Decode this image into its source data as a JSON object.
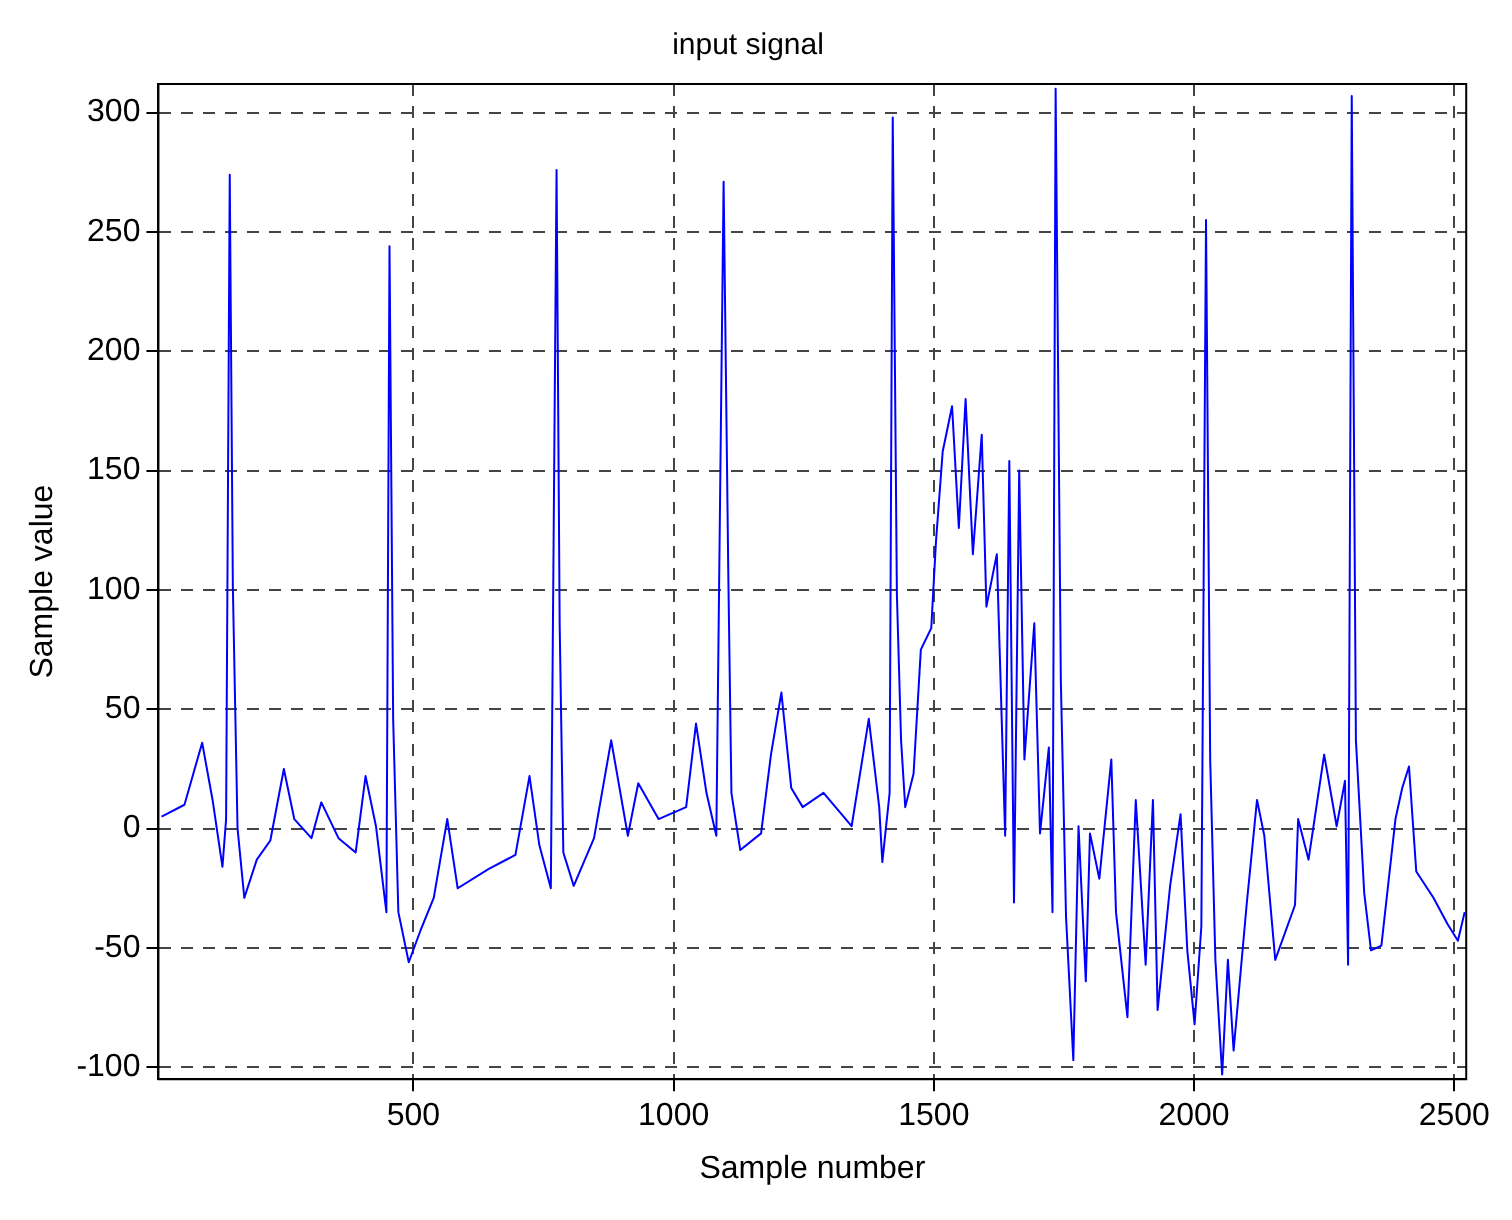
{
  "chart_data": {
    "type": "line",
    "title": "input signal",
    "xlabel": "Sample number",
    "ylabel": "Sample value",
    "xlim": [
      10,
      2523
    ],
    "ylim": [
      -105,
      312
    ],
    "xticks": [
      500,
      1000,
      1500,
      2000,
      2500
    ],
    "yticks": [
      -100,
      -50,
      0,
      50,
      100,
      150,
      200,
      250,
      300
    ],
    "grid": true,
    "line_style": "solid",
    "marker": "none",
    "series": [
      {
        "color": "#0000ff",
        "x": [
          16,
          60,
          94,
          114,
          133,
          140,
          147,
          153,
          162,
          175,
          199,
          225,
          251,
          271,
          304,
          323,
          356,
          389,
          408,
          428,
          448,
          454,
          461,
          471,
          491,
          513,
          539,
          565,
          585,
          644,
          696,
          723,
          742,
          764,
          775,
          781,
          788,
          808,
          847,
          880,
          912,
          932,
          971,
          1024,
          1043,
          1063,
          1082,
          1096,
          1105,
          1111,
          1128,
          1168,
          1187,
          1207,
          1226,
          1248,
          1288,
          1342,
          1375,
          1395,
          1401,
          1415,
          1421,
          1429,
          1437,
          1445,
          1461,
          1475,
          1495,
          1504,
          1517,
          1535,
          1548,
          1561,
          1575,
          1592,
          1601,
          1621,
          1637,
          1645,
          1654,
          1664,
          1674,
          1693,
          1704,
          1721,
          1728,
          1734,
          1744,
          1754,
          1768,
          1778,
          1792,
          1800,
          1818,
          1841,
          1850,
          1872,
          1888,
          1907,
          1921,
          1930,
          1954,
          1974,
          1987,
          2001,
          2014,
          2023,
          2031,
          2041,
          2054,
          2065,
          2076,
          2101,
          2121,
          2135,
          2156,
          2194,
          2200,
          2220,
          2250,
          2274,
          2290,
          2296,
          2303,
          2311,
          2327,
          2340,
          2360,
          2387,
          2400,
          2413,
          2427,
          2460,
          2487,
          2507,
          2520
        ],
        "values": [
          5,
          10,
          36,
          12,
          -16,
          4,
          274,
          101,
          0,
          -29,
          -13,
          -5,
          25,
          4,
          -4,
          11,
          -4,
          -10,
          22,
          1,
          -35,
          244,
          46,
          -35,
          -56,
          -43,
          -29,
          4,
          -25,
          -17,
          -11,
          22,
          -7,
          -25,
          276,
          85,
          -10,
          -24,
          -4,
          37,
          -3,
          19,
          4,
          9,
          44,
          15,
          -3,
          271,
          107,
          15,
          -9,
          -2,
          31,
          57,
          17,
          9,
          15,
          1,
          46,
          9,
          -14,
          15,
          298,
          98,
          37,
          9,
          23,
          75,
          84,
          120,
          158,
          177,
          126,
          180,
          115,
          165,
          93,
          115,
          -3,
          154,
          -31,
          150,
          29,
          86,
          -2,
          34,
          -35,
          310,
          62,
          -37,
          -97,
          1,
          -64,
          -2,
          -21,
          29,
          -35,
          -79,
          12,
          -57,
          12,
          -76,
          -24,
          6,
          -51,
          -82,
          -41,
          255,
          29,
          -55,
          -103,
          -55,
          -93,
          -32,
          12,
          -3,
          -55,
          -32,
          4,
          -13,
          31,
          1,
          20,
          -57,
          307,
          37,
          -27,
          -51,
          -49,
          4,
          17,
          26,
          -18,
          -29,
          -40,
          -47,
          -35
        ]
      }
    ]
  }
}
